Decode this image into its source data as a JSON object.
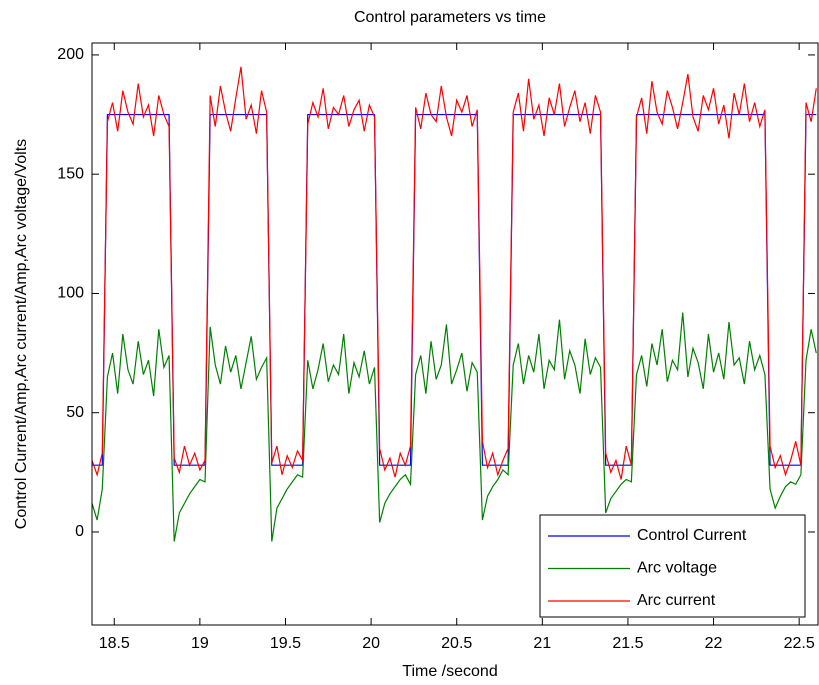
{
  "chart_data": {
    "type": "line",
    "title": "Control parameters vs time",
    "xlabel": "Time /second",
    "ylabel": "Control Current/Amp,Arc current/Amp,Arc voltage/Volts",
    "x": [
      18.37,
      18.4,
      18.43,
      18.46,
      18.49,
      18.52,
      18.55,
      18.58,
      18.61,
      18.64,
      18.67,
      18.7,
      18.73,
      18.76,
      18.79,
      18.82,
      18.85,
      18.88,
      18.91,
      18.94,
      18.97,
      19,
      19.03,
      19.06,
      19.09,
      19.12,
      19.15,
      19.18,
      19.21,
      19.24,
      19.27,
      19.3,
      19.33,
      19.36,
      19.39,
      19.42,
      19.45,
      19.48,
      19.51,
      19.54,
      19.57,
      19.6,
      19.63,
      19.66,
      19.69,
      19.72,
      19.75,
      19.78,
      19.81,
      19.84,
      19.87,
      19.9,
      19.93,
      19.96,
      19.99,
      20.02,
      20.05,
      20.08,
      20.11,
      20.14,
      20.17,
      20.2,
      20.23,
      20.26,
      20.29,
      20.32,
      20.35,
      20.38,
      20.41,
      20.44,
      20.47,
      20.5,
      20.53,
      20.56,
      20.59,
      20.62,
      20.65,
      20.68,
      20.71,
      20.74,
      20.77,
      20.8,
      20.83,
      20.86,
      20.89,
      20.92,
      20.95,
      20.98,
      21.01,
      21.04,
      21.07,
      21.1,
      21.13,
      21.16,
      21.19,
      21.22,
      21.25,
      21.28,
      21.31,
      21.34,
      21.37,
      21.4,
      21.43,
      21.46,
      21.49,
      21.52,
      21.55,
      21.58,
      21.61,
      21.64,
      21.67,
      21.7,
      21.73,
      21.76,
      21.79,
      21.82,
      21.85,
      21.88,
      21.91,
      21.94,
      21.97,
      22,
      22.03,
      22.06,
      22.09,
      22.12,
      22.15,
      22.18,
      22.21,
      22.24,
      22.27,
      22.3,
      22.33,
      22.36,
      22.39,
      22.42,
      22.45,
      22.48,
      22.51,
      22.54,
      22.57,
      22.6
    ],
    "series": [
      {
        "name": "Control Current",
        "color": "#0000ff",
        "values": [
          28,
          28,
          28,
          175,
          175,
          175,
          175,
          175,
          175,
          175,
          175,
          175,
          175,
          175,
          175,
          175,
          28,
          28,
          28,
          28,
          28,
          28,
          28,
          175,
          175,
          175,
          175,
          175,
          175,
          175,
          175,
          175,
          175,
          175,
          175,
          28,
          28,
          28,
          28,
          28,
          28,
          28,
          175,
          175,
          175,
          175,
          175,
          175,
          175,
          175,
          175,
          175,
          175,
          175,
          175,
          175,
          28,
          28,
          28,
          28,
          28,
          28,
          28,
          175,
          175,
          175,
          175,
          175,
          175,
          175,
          175,
          175,
          175,
          175,
          175,
          175,
          28,
          28,
          28,
          28,
          28,
          28,
          175,
          175,
          175,
          175,
          175,
          175,
          175,
          175,
          175,
          175,
          175,
          175,
          175,
          175,
          175,
          175,
          175,
          175,
          28,
          28,
          28,
          28,
          28,
          28,
          175,
          175,
          175,
          175,
          175,
          175,
          175,
          175,
          175,
          175,
          175,
          175,
          175,
          175,
          175,
          175,
          175,
          175,
          175,
          175,
          175,
          175,
          175,
          175,
          175,
          175,
          28,
          28,
          28,
          28,
          28,
          28,
          28,
          175,
          175,
          175
        ]
      },
      {
        "name": "Arc voltage",
        "color": "#008000",
        "values": [
          12,
          5,
          18,
          65,
          75,
          58,
          83,
          68,
          62,
          80,
          66,
          72,
          57,
          85,
          69,
          74,
          -4,
          8,
          12,
          16,
          19,
          22,
          21,
          86,
          70,
          62,
          78,
          67,
          74,
          60,
          71,
          82,
          64,
          69,
          73,
          -4,
          10,
          14,
          18,
          21,
          24,
          23,
          72,
          60,
          68,
          79,
          63,
          70,
          66,
          83,
          58,
          71,
          65,
          76,
          62,
          69,
          4,
          12,
          16,
          19,
          22,
          24,
          20,
          66,
          74,
          58,
          80,
          64,
          70,
          87,
          62,
          68,
          75,
          59,
          71,
          67,
          5,
          15,
          19,
          22,
          26,
          24,
          70,
          79,
          62,
          74,
          67,
          83,
          60,
          72,
          68,
          89,
          64,
          76,
          70,
          58,
          81,
          66,
          73,
          69,
          8,
          14,
          17,
          20,
          22,
          21,
          66,
          74,
          61,
          79,
          70,
          85,
          63,
          72,
          68,
          92,
          65,
          77,
          71,
          60,
          83,
          67,
          75,
          64,
          88,
          70,
          73,
          62,
          80,
          68,
          74,
          66,
          18,
          10,
          15,
          19,
          21,
          20,
          24,
          72,
          85,
          75
        ]
      },
      {
        "name": "Arc current",
        "color": "#ff0000",
        "values": [
          30,
          24,
          33,
          172,
          180,
          168,
          185,
          176,
          171,
          188,
          174,
          179,
          166,
          183,
          175,
          170,
          31,
          25,
          36,
          28,
          33,
          26,
          30,
          183,
          170,
          187,
          176,
          168,
          182,
          195,
          173,
          179,
          167,
          185,
          176,
          29,
          36,
          24,
          32,
          27,
          34,
          30,
          171,
          180,
          174,
          186,
          169,
          178,
          175,
          183,
          170,
          177,
          181,
          168,
          179,
          174,
          35,
          26,
          31,
          23,
          33,
          28,
          36,
          178,
          169,
          184,
          175,
          172,
          187,
          174,
          166,
          181,
          176,
          183,
          170,
          177,
          38,
          27,
          33,
          24,
          30,
          35,
          176,
          184,
          168,
          190,
          173,
          179,
          166,
          182,
          175,
          188,
          170,
          178,
          185,
          172,
          180,
          167,
          183,
          176,
          33,
          25,
          30,
          22,
          36,
          28,
          174,
          182,
          167,
          189,
          176,
          171,
          185,
          178,
          169,
          180,
          192,
          174,
          168,
          183,
          177,
          186,
          171,
          179,
          165,
          184,
          175,
          188,
          172,
          180,
          170,
          177,
          36,
          27,
          32,
          24,
          30,
          38,
          28,
          180,
          172,
          186
        ]
      }
    ],
    "xlim": [
      18.37,
      22.61
    ],
    "xticks": [
      18.5,
      19,
      19.5,
      20,
      20.5,
      21,
      21.5,
      22,
      22.5
    ],
    "ylim": [
      -39,
      205
    ],
    "yticks": [
      0,
      50,
      100,
      150,
      200
    ],
    "legend": "lower right"
  }
}
